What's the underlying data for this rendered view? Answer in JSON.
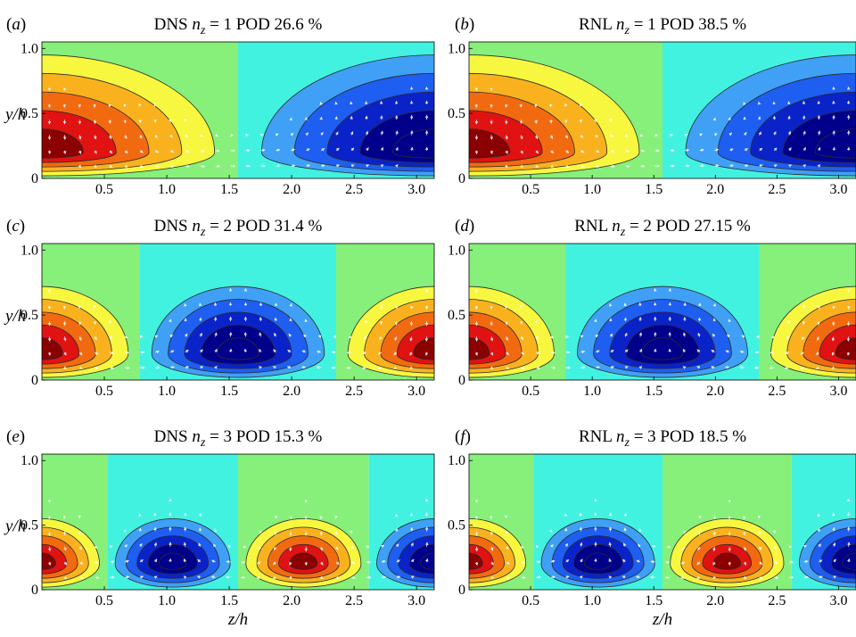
{
  "figure": {
    "ylabel_parts": {
      "var": "y",
      "den": "h"
    },
    "xlabel_parts": {
      "var": "z",
      "den": "h"
    },
    "ylabel": "y/h",
    "xlabel": "z/h"
  },
  "chart_data": [
    {
      "type": "heatmap",
      "panel": "(a)",
      "title": "DNS n_z = 1 POD 26.6 %",
      "title_parts": {
        "model": "DNS",
        "nz": "1",
        "pct": "26.6"
      },
      "n_z": 1,
      "pod_percent": 26.6,
      "xlabel": "",
      "ylabel": "y/h",
      "xlim": [
        0,
        3.1416
      ],
      "ylim": [
        0,
        1.05
      ],
      "xticks": [
        "0.5",
        "1.0",
        "1.5",
        "2.0",
        "2.5",
        "3.0"
      ],
      "yticks": [
        "0",
        "0.5",
        "1.0"
      ],
      "colormap": "jet",
      "vectors": "white arrows (v,w)"
    },
    {
      "type": "heatmap",
      "panel": "(b)",
      "title": "RNL n_z = 1 POD 38.5 %",
      "title_parts": {
        "model": "RNL",
        "nz": "1",
        "pct": "38.5"
      },
      "n_z": 1,
      "pod_percent": 38.5,
      "xlabel": "",
      "ylabel": "",
      "xlim": [
        0,
        3.1416
      ],
      "ylim": [
        0,
        1.05
      ],
      "xticks": [
        "0.5",
        "1.0",
        "1.5",
        "2.0",
        "2.5",
        "3.0"
      ],
      "yticks": [
        "0",
        "0.5",
        "1.0"
      ],
      "colormap": "jet",
      "vectors": "white arrows (v,w)"
    },
    {
      "type": "heatmap",
      "panel": "(c)",
      "title": "DNS n_z = 2 POD 31.4 %",
      "title_parts": {
        "model": "DNS",
        "nz": "2",
        "pct": "31.4"
      },
      "n_z": 2,
      "pod_percent": 31.4,
      "xlabel": "",
      "ylabel": "y/h",
      "xlim": [
        0,
        3.1416
      ],
      "ylim": [
        0,
        1.05
      ],
      "xticks": [
        "0.5",
        "1.0",
        "1.5",
        "2.0",
        "2.5",
        "3.0"
      ],
      "yticks": [
        "0",
        "0.5",
        "1.0"
      ],
      "colormap": "jet",
      "vectors": "white arrows (v,w)"
    },
    {
      "type": "heatmap",
      "panel": "(d)",
      "title": "RNL n_z = 2 POD 27.15 %",
      "title_parts": {
        "model": "RNL",
        "nz": "2",
        "pct": "27.15"
      },
      "n_z": 2,
      "pod_percent": 27.15,
      "xlabel": "",
      "ylabel": "",
      "xlim": [
        0,
        3.1416
      ],
      "ylim": [
        0,
        1.05
      ],
      "xticks": [
        "0.5",
        "1.0",
        "1.5",
        "2.0",
        "2.5",
        "3.0"
      ],
      "yticks": [
        "0",
        "0.5",
        "1.0"
      ],
      "colormap": "jet",
      "vectors": "white arrows (v,w)"
    },
    {
      "type": "heatmap",
      "panel": "(e)",
      "title": "DNS n_z = 3 POD 15.3 %",
      "title_parts": {
        "model": "DNS",
        "nz": "3",
        "pct": "15.3"
      },
      "n_z": 3,
      "pod_percent": 15.3,
      "xlabel": "z/h",
      "ylabel": "y/h",
      "xlim": [
        0,
        3.1416
      ],
      "ylim": [
        0,
        1.05
      ],
      "xticks": [
        "0.5",
        "1.0",
        "1.5",
        "2.0",
        "2.5",
        "3.0"
      ],
      "yticks": [
        "0",
        "0.5",
        "1.0"
      ],
      "colormap": "jet",
      "vectors": "white arrows (v,w)"
    },
    {
      "type": "heatmap",
      "panel": "(f)",
      "title": "RNL n_z = 3 POD 18.5 %",
      "title_parts": {
        "model": "RNL",
        "nz": "3",
        "pct": "18.5"
      },
      "n_z": 3,
      "pod_percent": 18.5,
      "xlabel": "z/h",
      "ylabel": "",
      "xlim": [
        0,
        3.1416
      ],
      "ylim": [
        0,
        1.05
      ],
      "xticks": [
        "0.5",
        "1.0",
        "1.5",
        "2.0",
        "2.5",
        "3.0"
      ],
      "yticks": [
        "0",
        "0.5",
        "1.0"
      ],
      "colormap": "jet",
      "vectors": "white arrows (v,w)"
    }
  ],
  "colors": {
    "contour_levels": [
      "#00008b",
      "#0a23c8",
      "#1e5ef0",
      "#3fa0f5",
      "#42f2e0",
      "#86f07a",
      "#f7f740",
      "#f9b21e",
      "#f26a10",
      "#e01212",
      "#8b0000"
    ],
    "contour_line": "#2a2a2a",
    "vector": "#ffffff"
  }
}
